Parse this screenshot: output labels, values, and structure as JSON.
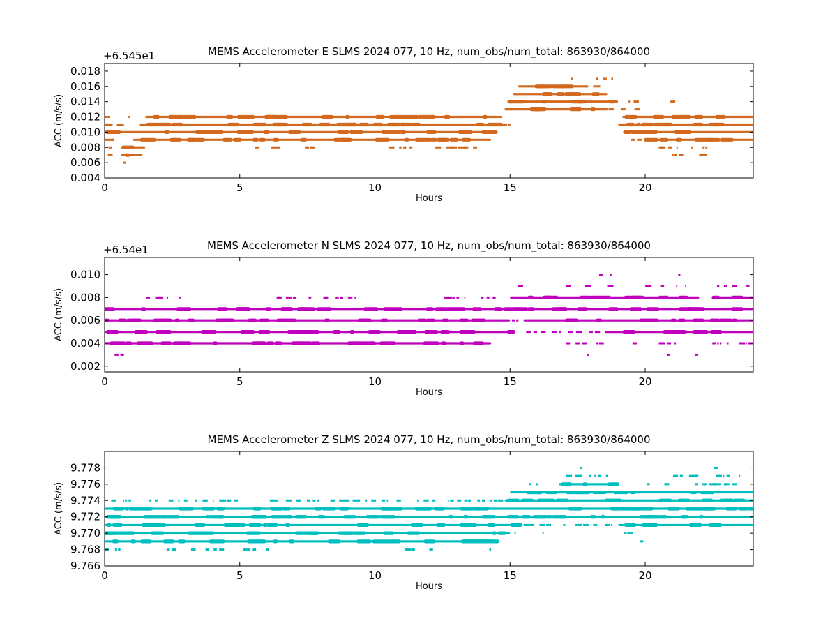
{
  "chart_data": [
    {
      "type": "scatter",
      "title": "MEMS Accelerometer E SLMS 2024 077, 10 Hz, num_obs/num_total: 863930/864000",
      "xlabel": "Hours",
      "ylabel": "ACC (m/s/s)",
      "offset_label": "+6.545e1",
      "color": "#d2691e",
      "xlim": [
        0,
        24
      ],
      "ylim": [
        0.004,
        0.019
      ],
      "xticks": [
        "0",
        "5",
        "10",
        "15",
        "20"
      ],
      "yticks": [
        "0.004",
        "0.006",
        "0.008",
        "0.010",
        "0.012",
        "0.014",
        "0.016",
        "0.018"
      ],
      "segments": [
        {
          "y": 0.012,
          "dense": [
            [
              1.5,
              14.5
            ],
            [
              19.3,
              24
            ]
          ],
          "sparse": [
            [
              0,
              0.3
            ],
            [
              0.9,
              1.0
            ],
            [
              14.5,
              15.0
            ],
            [
              19.0,
              19.3
            ]
          ]
        },
        {
          "y": 0.011,
          "dense": [
            [
              0,
              0.3
            ],
            [
              1.3,
              14.9
            ],
            [
              19.0,
              24
            ]
          ],
          "sparse": [
            [
              0.5,
              1.3
            ],
            [
              14.9,
              15.1
            ]
          ]
        },
        {
          "y": 0.01,
          "dense": [
            [
              0,
              14.4
            ],
            [
              19.3,
              24
            ]
          ],
          "sparse": [
            [
              14.4,
              14.5
            ],
            [
              19.0,
              19.3
            ]
          ]
        },
        {
          "y": 0.009,
          "dense": [
            [
              0,
              0.2
            ],
            [
              1.2,
              14.3
            ],
            [
              20.0,
              24
            ]
          ],
          "sparse": [
            [
              0.2,
              1.2
            ],
            [
              19.5,
              20.0
            ]
          ]
        },
        {
          "y": 0.008,
          "dense": [
            [
              0.6,
              1.5
            ]
          ],
          "sparse": [
            [
              0,
              0.3
            ],
            [
              5.5,
              7.8
            ],
            [
              10.3,
              14.0
            ],
            [
              20.5,
              22.5
            ]
          ]
        },
        {
          "y": 0.007,
          "dense": [
            [
              0.6,
              1.4
            ]
          ],
          "sparse": [
            [
              0.2,
              0.5
            ],
            [
              21.0,
              22.5
            ]
          ]
        },
        {
          "y": 0.006,
          "dense": [],
          "sparse": [
            [
              0.7,
              0.8
            ]
          ]
        },
        {
          "y": 0.013,
          "dense": [
            [
              14.8,
              18.6
            ]
          ],
          "sparse": [
            [
              18.6,
              20.2
            ]
          ]
        },
        {
          "y": 0.014,
          "dense": [
            [
              14.9,
              18.8
            ]
          ],
          "sparse": [
            [
              18.8,
              20.0
            ],
            [
              21.0,
              21.4
            ]
          ]
        },
        {
          "y": 0.015,
          "dense": [
            [
              15.1,
              18.6
            ]
          ],
          "sparse": []
        },
        {
          "y": 0.016,
          "dense": [
            [
              15.3,
              17.9
            ]
          ],
          "sparse": [
            [
              18.0,
              18.4
            ]
          ]
        },
        {
          "y": 0.017,
          "dense": [],
          "sparse": [
            [
              17.2,
              17.4
            ],
            [
              18.2,
              18.8
            ]
          ]
        }
      ]
    },
    {
      "type": "scatter",
      "title": "MEMS Accelerometer N SLMS 2024 077, 10 Hz, num_obs/num_total: 863930/864000",
      "xlabel": "Hours",
      "ylabel": "ACC (m/s/s)",
      "offset_label": "+6.54e1",
      "color": "#bf00bf",
      "xlim": [
        0,
        24
      ],
      "ylim": [
        0.0015,
        0.0115
      ],
      "xticks": [
        "0",
        "5",
        "10",
        "15",
        "20"
      ],
      "yticks": [
        "0.002",
        "0.004",
        "0.006",
        "0.008",
        "0.010"
      ],
      "segments": [
        {
          "y": 0.007,
          "dense": [
            [
              0,
              24
            ]
          ],
          "sparse": []
        },
        {
          "y": 0.006,
          "dense": [
            [
              0,
              15.0
            ],
            [
              15.5,
              24
            ]
          ],
          "sparse": [
            [
              15.0,
              15.5
            ]
          ]
        },
        {
          "y": 0.005,
          "dense": [
            [
              0,
              15.2
            ],
            [
              18.5,
              24
            ]
          ],
          "sparse": [
            [
              15.2,
              18.5
            ]
          ]
        },
        {
          "y": 0.004,
          "dense": [
            [
              0,
              14.3
            ]
          ],
          "sparse": [
            [
              17.0,
              18.5
            ],
            [
              19.5,
              21.2
            ],
            [
              21.8,
              24
            ]
          ]
        },
        {
          "y": 0.008,
          "dense": [
            [
              15.0,
              22.0
            ],
            [
              22.5,
              24
            ]
          ],
          "sparse": [
            [
              1.5,
              3.0
            ],
            [
              6.3,
              9.9
            ],
            [
              12.5,
              15.0
            ]
          ]
        },
        {
          "y": 0.009,
          "dense": [],
          "sparse": [
            [
              15.1,
              15.5
            ],
            [
              17.0,
              18.9
            ],
            [
              20.0,
              21.5
            ],
            [
              22.6,
              24
            ]
          ]
        },
        {
          "y": 0.01,
          "dense": [],
          "sparse": [
            [
              18.3,
              18.9
            ],
            [
              21.1,
              21.3
            ]
          ]
        },
        {
          "y": 0.003,
          "dense": [],
          "sparse": [
            [
              0.2,
              0.8
            ],
            [
              17.8,
              17.9
            ],
            [
              20.8,
              20.9
            ],
            [
              21.9,
              22.1
            ]
          ]
        }
      ]
    },
    {
      "type": "scatter",
      "title": "MEMS Accelerometer Z SLMS 2024 077, 10 Hz, num_obs/num_total: 863930/864000",
      "xlabel": "Hours",
      "ylabel": "ACC (m/s/s)",
      "offset_label": "",
      "color": "#00bfbf",
      "xlim": [
        0,
        24
      ],
      "ylim": [
        9.766,
        9.78
      ],
      "xticks": [
        "0",
        "5",
        "10",
        "15",
        "20"
      ],
      "yticks": [
        "9.766",
        "9.768",
        "9.770",
        "9.772",
        "9.774",
        "9.776",
        "9.778"
      ],
      "segments": [
        {
          "y": 9.772,
          "dense": [
            [
              0,
              24
            ]
          ],
          "sparse": []
        },
        {
          "y": 9.771,
          "dense": [
            [
              0,
              15.3
            ],
            [
              19.0,
              24
            ]
          ],
          "sparse": [
            [
              15.3,
              19.0
            ]
          ]
        },
        {
          "y": 9.773,
          "dense": [
            [
              0,
              24
            ]
          ],
          "sparse": []
        },
        {
          "y": 9.77,
          "dense": [
            [
              0,
              15.0
            ]
          ],
          "sparse": [
            [
              15.0,
              15.2
            ],
            [
              16.2,
              16.3
            ],
            [
              19.2,
              19.8
            ]
          ]
        },
        {
          "y": 9.769,
          "dense": [
            [
              0,
              14.6
            ]
          ],
          "sparse": [
            [
              19.8,
              20.0
            ]
          ]
        },
        {
          "y": 9.774,
          "dense": [
            [
              14.8,
              24
            ]
          ],
          "sparse": [
            [
              0.3,
              14.8
            ]
          ]
        },
        {
          "y": 9.768,
          "dense": [],
          "sparse": [
            [
              0,
              0.7
            ],
            [
              2.3,
              4.4
            ],
            [
              5.0,
              6.2
            ],
            [
              11.0,
              12.2
            ],
            [
              14.2,
              14.3
            ]
          ]
        },
        {
          "y": 9.775,
          "dense": [
            [
              15.0,
              24
            ]
          ],
          "sparse": []
        },
        {
          "y": 9.776,
          "dense": [
            [
              16.8,
              19.0
            ]
          ],
          "sparse": [
            [
              15.7,
              16.1
            ],
            [
              20.0,
              23.5
            ]
          ]
        },
        {
          "y": 9.777,
          "dense": [],
          "sparse": [
            [
              16.9,
              18.7
            ],
            [
              20.5,
              23.7
            ]
          ]
        },
        {
          "y": 9.778,
          "dense": [],
          "sparse": [
            [
              17.6,
              17.7
            ],
            [
              22.6,
              22.8
            ]
          ]
        }
      ]
    }
  ]
}
